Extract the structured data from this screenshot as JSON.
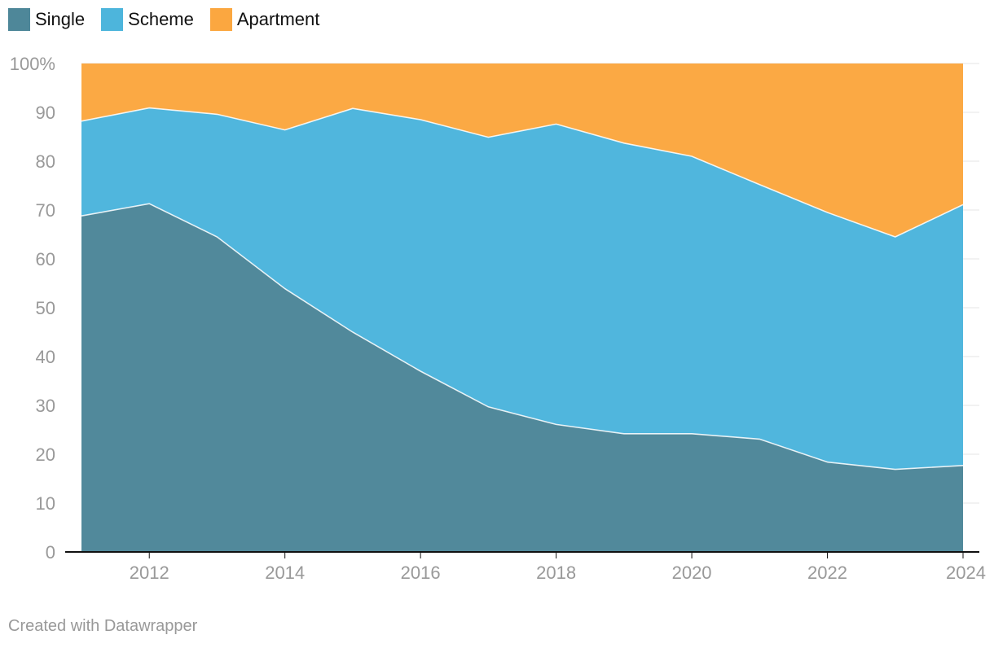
{
  "legend": {
    "items": [
      {
        "label": "Single",
        "color": "#4e8799"
      },
      {
        "label": "Scheme",
        "color": "#4db5dc"
      },
      {
        "label": "Apartment",
        "color": "#fba740"
      }
    ]
  },
  "credit": "Created with Datawrapper",
  "chart_data": {
    "type": "area",
    "stacked": true,
    "x": [
      2011,
      2012,
      2013,
      2014,
      2015,
      2016,
      2017,
      2018,
      2019,
      2020,
      2021,
      2022,
      2023,
      2024
    ],
    "series": [
      {
        "name": "Single",
        "color": "#4e8799",
        "values": [
          68.8,
          71.3,
          64.5,
          53.9,
          45.0,
          37.0,
          29.7,
          26.1,
          24.2,
          24.2,
          23.1,
          18.4,
          16.9,
          17.7
        ]
      },
      {
        "name": "Scheme",
        "color": "#4db5dc",
        "values": [
          19.4,
          19.6,
          25.1,
          32.5,
          45.8,
          51.5,
          55.2,
          61.5,
          59.5,
          56.8,
          52.1,
          51.1,
          47.6,
          53.4
        ]
      },
      {
        "name": "Apartment",
        "color": "#fba740",
        "values": [
          11.8,
          9.1,
          10.4,
          13.6,
          9.2,
          11.5,
          15.1,
          12.4,
          16.3,
          19.0,
          24.8,
          30.5,
          35.5,
          28.9
        ]
      }
    ],
    "y_ticks": [
      "100%",
      "90",
      "80",
      "70",
      "60",
      "50",
      "40",
      "30",
      "20",
      "10",
      "0"
    ],
    "y_tick_values": [
      100,
      90,
      80,
      70,
      60,
      50,
      40,
      30,
      20,
      10,
      0
    ],
    "x_ticks": [
      "2012",
      "2014",
      "2016",
      "2018",
      "2020",
      "2022",
      "2024"
    ],
    "x_tick_values": [
      2012,
      2014,
      2016,
      2018,
      2020,
      2022,
      2024
    ],
    "ylim": [
      0,
      100
    ],
    "xlim": [
      2011,
      2024
    ],
    "grid": true,
    "legend_position": "top-left"
  }
}
